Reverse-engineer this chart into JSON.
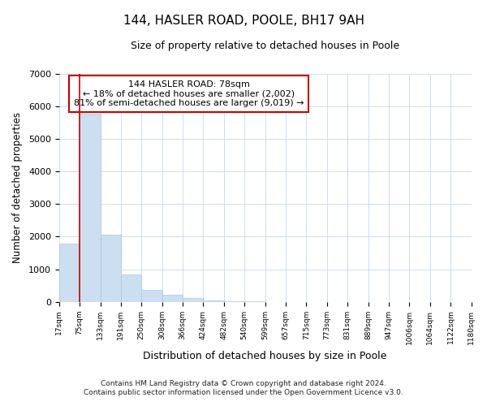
{
  "title": "144, HASLER ROAD, POOLE, BH17 9AH",
  "subtitle": "Size of property relative to detached houses in Poole",
  "xlabel": "Distribution of detached houses by size in Poole",
  "ylabel": "Number of detached properties",
  "bin_labels": [
    "17sqm",
    "75sqm",
    "133sqm",
    "191sqm",
    "250sqm",
    "308sqm",
    "366sqm",
    "424sqm",
    "482sqm",
    "540sqm",
    "599sqm",
    "657sqm",
    "715sqm",
    "773sqm",
    "831sqm",
    "889sqm",
    "947sqm",
    "1006sqm",
    "1064sqm",
    "1122sqm",
    "1180sqm"
  ],
  "bar_heights": [
    1780,
    5780,
    2050,
    840,
    370,
    230,
    110,
    55,
    30,
    15,
    5,
    0,
    0,
    0,
    0,
    0,
    0,
    0,
    0,
    0
  ],
  "bar_color": "#ccdff0",
  "bar_edge_color": "#aac8e0",
  "vertical_line_x": 1,
  "vertical_line_color": "#cc0000",
  "annotation_title": "144 HASLER ROAD: 78sqm",
  "annotation_line1": "← 18% of detached houses are smaller (2,002)",
  "annotation_line2": "81% of semi-detached houses are larger (9,019) →",
  "annotation_box_color": "#cc0000",
  "ylim": [
    0,
    7000
  ],
  "yticks": [
    0,
    1000,
    2000,
    3000,
    4000,
    5000,
    6000,
    7000
  ],
  "footnote1": "Contains HM Land Registry data © Crown copyright and database right 2024.",
  "footnote2": "Contains public sector information licensed under the Open Government Licence v3.0.",
  "num_bins": 20,
  "grid_color": "#c5d8ec"
}
